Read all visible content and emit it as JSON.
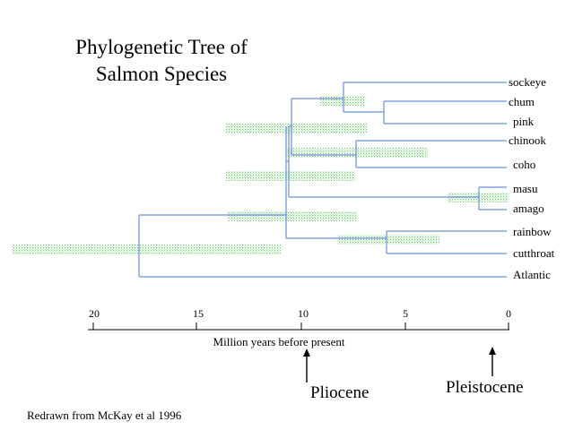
{
  "title": {
    "line1": "Phylogenetic Tree of",
    "line2": "Salmon Species"
  },
  "species": [
    "sockeye",
    "chum",
    "pink",
    "chinook",
    "coho",
    "masu",
    "amago",
    "rainbow",
    "cutthroat",
    "Atlantic"
  ],
  "axis": {
    "title": "Million years before present",
    "ticks": [
      "20",
      "15",
      "10",
      "5",
      "0"
    ]
  },
  "epochs": {
    "pliocene": "Pliocene",
    "pleistocene": "Pleistocene"
  },
  "credit": "Redrawn from McKay et al 1996",
  "colors": {
    "branch": "#6a8fd8",
    "uncertainty": "#7fcf7f",
    "axis": "#000000"
  }
}
